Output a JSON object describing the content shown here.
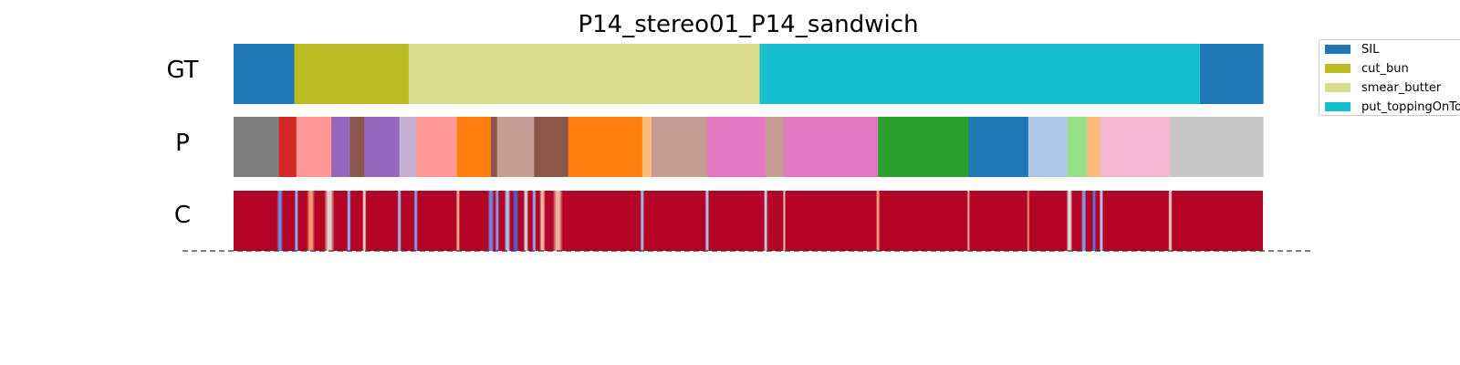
{
  "chart_data": {
    "type": "segmentation",
    "title": "P14_stereo01_P14_sandwich",
    "rows": [
      {
        "label": "GT",
        "segments": [
          {
            "start": 0.0,
            "end": 0.059,
            "label": "SIL",
            "color": "#1f77b4"
          },
          {
            "start": 0.059,
            "end": 0.17,
            "label": "cut_bun",
            "color": "#bcbd22"
          },
          {
            "start": 0.17,
            "end": 0.511,
            "label": "smear_butter",
            "color": "#dbdb8d"
          },
          {
            "start": 0.511,
            "end": 0.939,
            "label": "put_toppingOnTop",
            "color": "#17becf"
          },
          {
            "start": 0.939,
            "end": 1.0,
            "label": "SIL",
            "color": "#1f77b4"
          }
        ]
      },
      {
        "label": "P",
        "segments": [
          {
            "start": 0.0,
            "end": 0.044,
            "color": "#7f7f7f"
          },
          {
            "start": 0.044,
            "end": 0.061,
            "color": "#d62728"
          },
          {
            "start": 0.061,
            "end": 0.095,
            "color": "#ff9896"
          },
          {
            "start": 0.095,
            "end": 0.113,
            "color": "#9467bd"
          },
          {
            "start": 0.113,
            "end": 0.127,
            "color": "#8c564b"
          },
          {
            "start": 0.127,
            "end": 0.161,
            "color": "#9467bd"
          },
          {
            "start": 0.161,
            "end": 0.177,
            "color": "#c5b0d5"
          },
          {
            "start": 0.177,
            "end": 0.217,
            "color": "#ff9896"
          },
          {
            "start": 0.217,
            "end": 0.25,
            "color": "#ff7f0e"
          },
          {
            "start": 0.25,
            "end": 0.256,
            "color": "#8c564b"
          },
          {
            "start": 0.256,
            "end": 0.292,
            "color": "#c49c94"
          },
          {
            "start": 0.292,
            "end": 0.325,
            "color": "#8c564b"
          },
          {
            "start": 0.325,
            "end": 0.397,
            "color": "#ff7f0e"
          },
          {
            "start": 0.397,
            "end": 0.406,
            "color": "#ffbb78"
          },
          {
            "start": 0.406,
            "end": 0.46,
            "color": "#c49c94"
          },
          {
            "start": 0.46,
            "end": 0.517,
            "color": "#e377c2"
          },
          {
            "start": 0.517,
            "end": 0.535,
            "color": "#c49c94"
          },
          {
            "start": 0.535,
            "end": 0.626,
            "color": "#e377c2"
          },
          {
            "start": 0.626,
            "end": 0.714,
            "color": "#2ca02c"
          },
          {
            "start": 0.714,
            "end": 0.772,
            "color": "#1f77b4"
          },
          {
            "start": 0.772,
            "end": 0.81,
            "color": "#aec7e8"
          },
          {
            "start": 0.81,
            "end": 0.829,
            "color": "#98df8a"
          },
          {
            "start": 0.829,
            "end": 0.842,
            "color": "#ffbb78"
          },
          {
            "start": 0.842,
            "end": 0.91,
            "color": "#f7b6d2"
          },
          {
            "start": 0.91,
            "end": 1.0,
            "color": "#c7c7c7"
          }
        ]
      },
      {
        "label": "C",
        "base_color": "#b40426",
        "colormap": "coolwarm",
        "dips": [
          {
            "pos": 0.045,
            "width": 0.006,
            "value": 0.15
          },
          {
            "pos": 0.061,
            "width": 0.004,
            "value": 0.25
          },
          {
            "pos": 0.075,
            "width": 0.008,
            "value": 0.75
          },
          {
            "pos": 0.093,
            "width": 0.01,
            "value": 0.55
          },
          {
            "pos": 0.112,
            "width": 0.004,
            "value": 0.25
          },
          {
            "pos": 0.127,
            "width": 0.004,
            "value": 0.55
          },
          {
            "pos": 0.161,
            "width": 0.004,
            "value": 0.3
          },
          {
            "pos": 0.177,
            "width": 0.004,
            "value": 0.2
          },
          {
            "pos": 0.218,
            "width": 0.004,
            "value": 0.7
          },
          {
            "pos": 0.25,
            "width": 0.006,
            "value": 0.15
          },
          {
            "pos": 0.256,
            "width": 0.004,
            "value": 0.2
          },
          {
            "pos": 0.266,
            "width": 0.006,
            "value": 0.35
          },
          {
            "pos": 0.274,
            "width": 0.006,
            "value": 0.05
          },
          {
            "pos": 0.284,
            "width": 0.005,
            "value": 0.45
          },
          {
            "pos": 0.292,
            "width": 0.004,
            "value": 0.25
          },
          {
            "pos": 0.3,
            "width": 0.006,
            "value": 0.65
          },
          {
            "pos": 0.315,
            "width": 0.01,
            "value": 0.65
          },
          {
            "pos": 0.397,
            "width": 0.004,
            "value": 0.3
          },
          {
            "pos": 0.46,
            "width": 0.004,
            "value": 0.35
          },
          {
            "pos": 0.517,
            "width": 0.004,
            "value": 0.4
          },
          {
            "pos": 0.535,
            "width": 0.003,
            "value": 0.65
          },
          {
            "pos": 0.626,
            "width": 0.004,
            "value": 0.75
          },
          {
            "pos": 0.714,
            "width": 0.003,
            "value": 0.7
          },
          {
            "pos": 0.772,
            "width": 0.003,
            "value": 0.8
          },
          {
            "pos": 0.812,
            "width": 0.006,
            "value": 0.5
          },
          {
            "pos": 0.826,
            "width": 0.005,
            "value": 0.2
          },
          {
            "pos": 0.836,
            "width": 0.004,
            "value": 0.1
          },
          {
            "pos": 0.843,
            "width": 0.004,
            "value": 0.35
          },
          {
            "pos": 0.91,
            "width": 0.004,
            "value": 0.55
          }
        ]
      }
    ],
    "legend": {
      "placement": "right",
      "entries": [
        {
          "label": "SIL",
          "color": "#1f77b4"
        },
        {
          "label": "cut_bun",
          "color": "#bcbd22"
        },
        {
          "label": "smear_butter",
          "color": "#dbdb8d"
        },
        {
          "label": "put_toppingOnTo",
          "color": "#17becf"
        }
      ]
    }
  }
}
